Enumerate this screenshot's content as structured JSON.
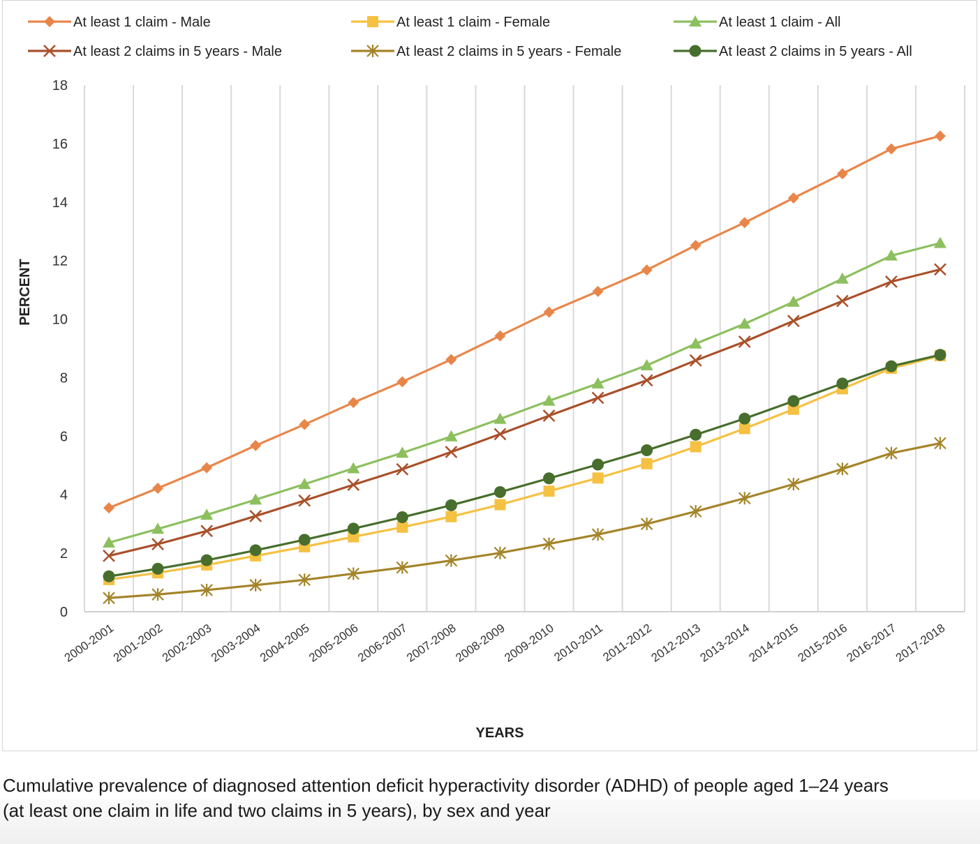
{
  "chart_data": {
    "type": "line",
    "title": "",
    "xlabel": "YEARS",
    "ylabel": "PERCENT",
    "ylim": [
      0,
      18
    ],
    "yticks": [
      0,
      2,
      4,
      6,
      8,
      10,
      12,
      14,
      16,
      18
    ],
    "grid": "vertical",
    "legend_position": "top",
    "categories": [
      "2000-2001",
      "2001-2002",
      "2002-2003",
      "2003-2004",
      "2004-2005",
      "2005-2006",
      "2006-2007",
      "2007-2008",
      "2008-2009",
      "2009-2010",
      "2010-2011",
      "2011-2012",
      "2012-2013",
      "2013-2014",
      "2014-2015",
      "2015-2016",
      "2016-2017",
      "2017-2018"
    ],
    "series": [
      {
        "name": "At least 1 claim -  Male",
        "color": "#E8864A",
        "marker": "diamond",
        "values": [
          3.55,
          4.22,
          4.92,
          5.68,
          6.4,
          7.15,
          7.86,
          8.62,
          9.43,
          10.24,
          10.95,
          11.68,
          12.52,
          13.3,
          14.14,
          14.97,
          15.82,
          16.26
        ]
      },
      {
        "name": "At least 1 claim -  Female",
        "color": "#F5C142",
        "marker": "square",
        "values": [
          1.1,
          1.33,
          1.6,
          1.91,
          2.22,
          2.56,
          2.89,
          3.25,
          3.66,
          4.12,
          4.57,
          5.06,
          5.64,
          6.26,
          6.92,
          7.62,
          8.32,
          8.75
        ]
      },
      {
        "name": "At least 1 claim -  All",
        "color": "#8CBF5E",
        "marker": "triangle",
        "values": [
          2.36,
          2.83,
          3.31,
          3.83,
          4.36,
          4.9,
          5.43,
          5.99,
          6.59,
          7.21,
          7.8,
          8.42,
          9.16,
          9.84,
          10.59,
          11.38,
          12.17,
          12.6
        ]
      },
      {
        "name": "At least 2 claims in 5 years -  Male",
        "color": "#A9502A",
        "marker": "x",
        "values": [
          1.91,
          2.31,
          2.76,
          3.27,
          3.8,
          4.34,
          4.87,
          5.46,
          6.07,
          6.7,
          7.31,
          7.91,
          8.59,
          9.23,
          9.94,
          10.62,
          11.28,
          11.7
        ]
      },
      {
        "name": "At least 2 claims in 5 years -  Female",
        "color": "#A48429",
        "marker": "star",
        "values": [
          0.47,
          0.59,
          0.74,
          0.91,
          1.09,
          1.3,
          1.51,
          1.75,
          2.01,
          2.32,
          2.64,
          3.0,
          3.43,
          3.88,
          4.36,
          4.88,
          5.42,
          5.76
        ]
      },
      {
        "name": "At least 2 claims in 5 years -  All",
        "color": "#476E2D",
        "marker": "circle",
        "values": [
          1.21,
          1.47,
          1.76,
          2.1,
          2.46,
          2.84,
          3.23,
          3.64,
          4.09,
          4.56,
          5.03,
          5.52,
          6.05,
          6.6,
          7.2,
          7.8,
          8.39,
          8.78
        ]
      }
    ]
  },
  "caption": {
    "line1": "Cumulative prevalence of diagnosed attention deficit hyperactivity disorder (ADHD) of people aged 1–24 years",
    "line2": "(at least one claim in life and two claims in 5 years), by sex and year"
  }
}
